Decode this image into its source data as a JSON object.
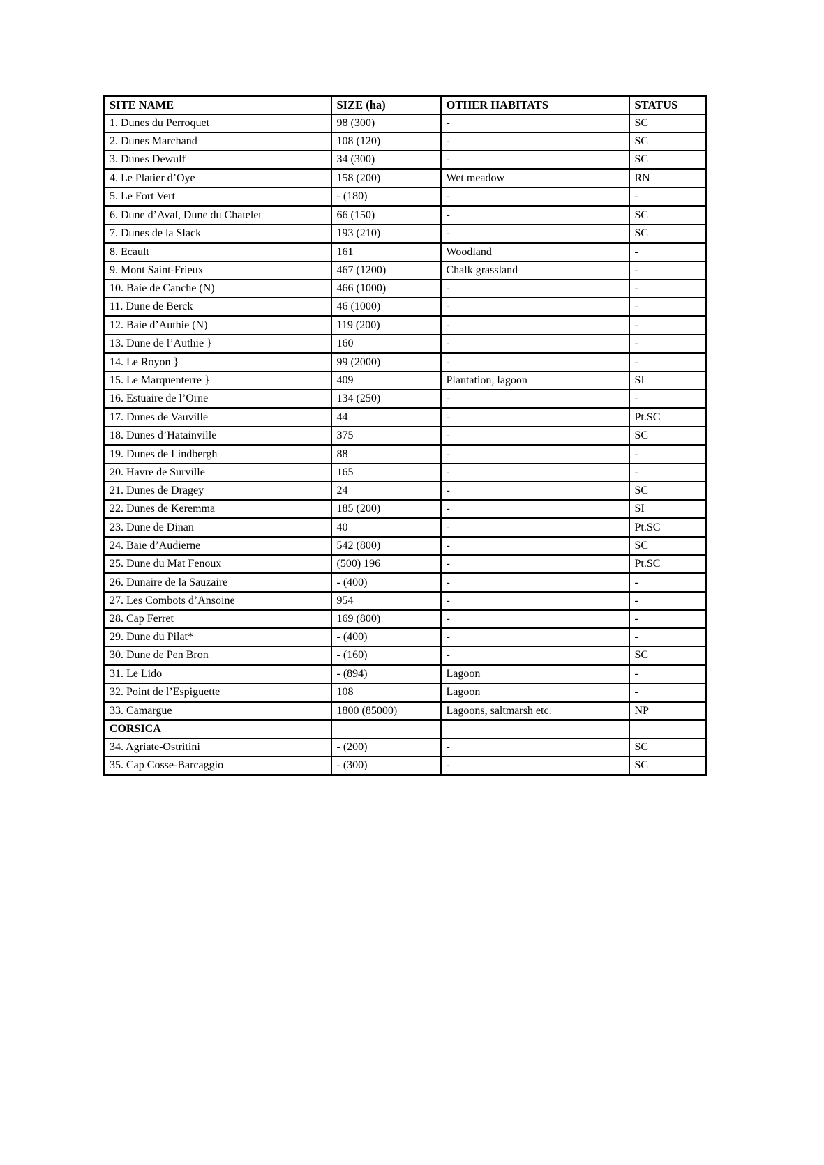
{
  "page": {
    "table": {
      "columns": [
        "SITE NAME",
        "SIZE (ha)",
        "OTHER HABITATS",
        "STATUS"
      ],
      "rows": [
        {
          "name": "1. Dunes du Perroquet",
          "size": "98 (300)",
          "habitats": "-",
          "status": "SC"
        },
        {
          "name": "2. Dunes Marchand",
          "size": "108 (120)",
          "habitats": "-",
          "status": "SC"
        },
        {
          "name": "3. Dunes Dewulf",
          "size": "34 (300)",
          "habitats": "-",
          "status": "SC"
        },
        {
          "name": "4. Le Platier d’Oye",
          "size": "158 (200)",
          "habitats": "Wet meadow",
          "status": "RN"
        },
        {
          "name": "5. Le Fort Vert",
          "size": "- (180)",
          "habitats": "-",
          "status": "-"
        },
        {
          "name": "6. Dune d’Aval, Dune du Chatelet",
          "size": "66 (150)",
          "habitats": "-",
          "status": "SC"
        },
        {
          "name": "7. Dunes de la Slack",
          "size": "193 (210)",
          "habitats": "-",
          "status": "SC"
        },
        {
          "name": "8. Ecault",
          "size": "161",
          "habitats": "Woodland",
          "status": "-"
        },
        {
          "name": "9. Mont Saint-Frieux",
          "size": "467 (1200)",
          "habitats": "Chalk grassland",
          "status": "-"
        },
        {
          "name": "10. Baie de Canche (N)",
          "size": "466 (1000)",
          "habitats": "-",
          "status": "-"
        },
        {
          "name": "11. Dune de Berck",
          "size": "46 (1000)",
          "habitats": "-",
          "status": "-"
        },
        {
          "name": "12. Baie d’Authie (N)",
          "size": "119 (200)",
          "habitats": "-",
          "status": "-"
        },
        {
          "name": "13. Dune de l’Authie }",
          "size": "160",
          "habitats": "-",
          "status": "-"
        },
        {
          "name": "14. Le Royon  }",
          "size": "99 (2000)",
          "habitats": "-",
          "status": "-"
        },
        {
          "name": "15. Le Marquenterre  }",
          "size": "409",
          "habitats": "Plantation, lagoon",
          "status": "SI"
        },
        {
          "name": "16. Estuaire de l’Orne",
          "size": "134 (250)",
          "habitats": "-",
          "status": "-"
        },
        {
          "name": "17. Dunes de Vauville",
          "size": "44",
          "habitats": "-",
          "status": "Pt.SC"
        },
        {
          "name": "18. Dunes d’Hatainville",
          "size": "375",
          "habitats": "-",
          "status": "SC"
        },
        {
          "name": "19. Dunes de Lindbergh",
          "size": "88",
          "habitats": "-",
          "status": "-"
        },
        {
          "name": "20. Havre de Surville",
          "size": "165",
          "habitats": "-",
          "status": "-"
        },
        {
          "name": "21. Dunes de Dragey",
          "size": "24",
          "habitats": "-",
          "status": "SC"
        },
        {
          "name": "22. Dunes de Keremma",
          "size": "185 (200)",
          "habitats": "-",
          "status": "SI"
        },
        {
          "name": "23. Dune de Dinan",
          "size": "40",
          "habitats": "-",
          "status": "Pt.SC"
        },
        {
          "name": "24. Baie d’Audierne",
          "size": "542 (800)",
          "habitats": "-",
          "status": "SC"
        },
        {
          "name": "25. Dune du Mat Fenoux",
          "size": "(500) 196",
          "habitats": "-",
          "status": "Pt.SC"
        },
        {
          "name": "26. Dunaire de la Sauzaire",
          "size": "- (400)",
          "habitats": "-",
          "status": "-"
        },
        {
          "name": "27. Les Combots d’Ansoine",
          "size": " 954",
          "habitats": "-",
          "status": "-"
        },
        {
          "name": "28. Cap Ferret",
          "size": "169 (800)",
          "habitats": "-",
          "status": "-"
        },
        {
          "name": "29. Dune du Pilat*",
          "size": "- (400)",
          "habitats": "-",
          "status": "-"
        },
        {
          "name": "30. Dune de Pen Bron",
          "size": "- (160)",
          "habitats": "-",
          "status": "SC"
        },
        {
          "name": "31. Le Lido",
          "size": "- (894)",
          "habitats": "Lagoon",
          "status": "-"
        },
        {
          "name": "32. Point de l’Espiguette",
          "size": "108",
          "habitats": "Lagoon",
          "status": "-"
        },
        {
          "name": "33. Camargue",
          "size": "1800 (85000)",
          "habitats": "Lagoons, saltmarsh etc.",
          "status": "NP"
        },
        {
          "name": "CORSICA",
          "size": "",
          "habitats": "",
          "status": "",
          "section": true
        },
        {
          "name": "34. Agriate-Ostritini",
          "size": "- (200)",
          "habitats": "-",
          "status": "SC"
        },
        {
          "name": "35. Cap Cosse-Barcaggio",
          "size": "- (300)",
          "habitats": "-",
          "status": "SC"
        }
      ]
    }
  }
}
